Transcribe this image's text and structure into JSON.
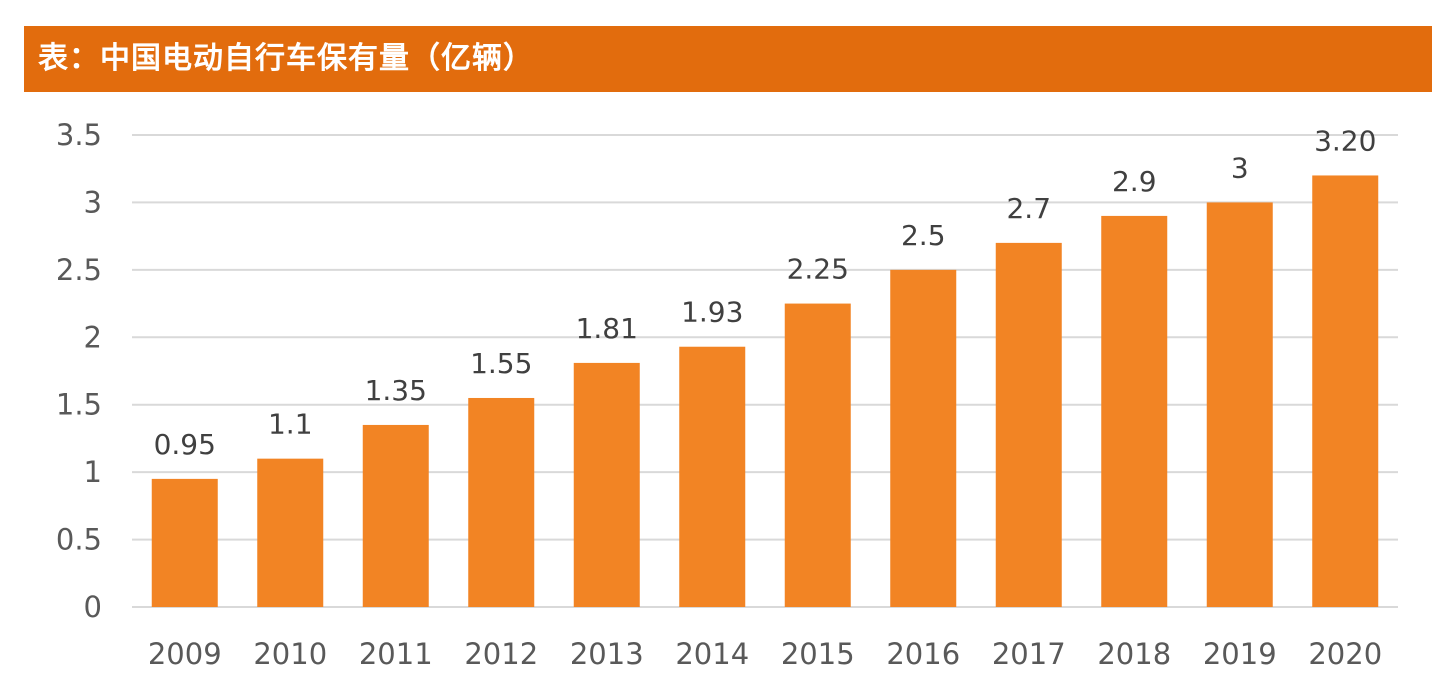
{
  "header": {
    "title": "表：中国电动自行车保有量（亿辆）"
  },
  "colors": {
    "title_bg": "#e26c0d",
    "bar": "#f28424",
    "grid": "#d9d9d9",
    "axis_text": "#595959",
    "label_text": "#404040"
  },
  "chart_data": {
    "type": "bar",
    "title": "表：中国电动自行车保有量（亿辆）",
    "xlabel": "",
    "ylabel": "",
    "categories": [
      "2009",
      "2010",
      "2011",
      "2012",
      "2013",
      "2014",
      "2015",
      "2016",
      "2017",
      "2018",
      "2019",
      "2020"
    ],
    "values": [
      0.95,
      1.1,
      1.35,
      1.55,
      1.81,
      1.93,
      2.25,
      2.5,
      2.7,
      2.9,
      3,
      3.2
    ],
    "data_labels": [
      "0.95",
      "1.1",
      "1.35",
      "1.55",
      "1.81",
      "1.93",
      "2.25",
      "2.5",
      "2.7",
      "2.9",
      "3",
      "3.20"
    ],
    "y_ticks": [
      "0",
      "0.5",
      "1",
      "1.5",
      "2",
      "2.5",
      "3",
      "3.5"
    ],
    "ylim": [
      0,
      3.5
    ],
    "grid": true,
    "legend": "none"
  }
}
